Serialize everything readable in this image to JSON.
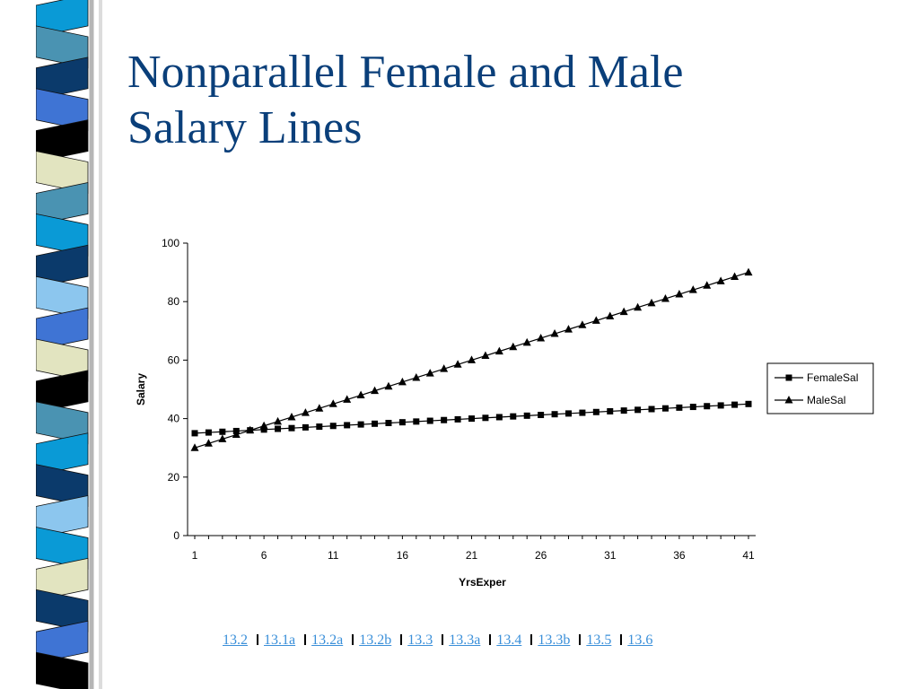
{
  "slide": {
    "title_lines": [
      "Nonparallel Female and Male",
      "Salary Lines"
    ]
  },
  "decoration": {
    "strip_colors": [
      "#0a9ad6",
      "#4a93b2",
      "#0b3a6b",
      "#3f74d4",
      "#000000",
      "#e2e4c0",
      "#4a93b2",
      "#0a9ad6",
      "#0b3a6b",
      "#8cc6ee",
      "#3f74d4",
      "#e2e4c0",
      "#000000",
      "#4a93b2",
      "#0a9ad6",
      "#0b3a6b",
      "#8cc6ee",
      "#0a9ad6",
      "#e2e4c0",
      "#0b3a6b",
      "#3f74d4",
      "#000000"
    ]
  },
  "chart_data": {
    "type": "line",
    "title": "",
    "xlabel": "YrsExper",
    "ylabel": "Salary",
    "ylim": [
      0,
      100
    ],
    "yticks": [
      0,
      20,
      40,
      60,
      80,
      100
    ],
    "xtick_labels": [
      "1",
      "6",
      "11",
      "16",
      "21",
      "26",
      "31",
      "36",
      "41"
    ],
    "x": [
      1,
      2,
      3,
      4,
      5,
      6,
      7,
      8,
      9,
      10,
      11,
      12,
      13,
      14,
      15,
      16,
      17,
      18,
      19,
      20,
      21,
      22,
      23,
      24,
      25,
      26,
      27,
      28,
      29,
      30,
      31,
      32,
      33,
      34,
      35,
      36,
      37,
      38,
      39,
      40,
      41
    ],
    "series": [
      {
        "name": "FemaleSal",
        "marker": "square",
        "values": [
          35,
          35.25,
          35.5,
          35.75,
          36,
          36.25,
          36.5,
          36.75,
          37,
          37.25,
          37.5,
          37.75,
          38,
          38.25,
          38.5,
          38.75,
          39,
          39.25,
          39.5,
          39.75,
          40,
          40.25,
          40.5,
          40.75,
          41,
          41.25,
          41.5,
          41.75,
          42,
          42.25,
          42.5,
          42.75,
          43,
          43.25,
          43.5,
          43.75,
          44,
          44.25,
          44.5,
          44.75,
          45
        ]
      },
      {
        "name": "MaleSal",
        "marker": "triangle",
        "values": [
          30,
          31.5,
          33,
          34.5,
          36,
          37.5,
          39,
          40.5,
          42,
          43.5,
          45,
          46.5,
          48,
          49.5,
          51,
          52.5,
          54,
          55.5,
          57,
          58.5,
          60,
          61.5,
          63,
          64.5,
          66,
          67.5,
          69,
          70.5,
          72,
          73.5,
          75,
          76.5,
          78,
          79.5,
          81,
          82.5,
          84,
          85.5,
          87,
          88.5,
          90
        ]
      }
    ],
    "grid": false,
    "legend_position": "right"
  },
  "nav_links": [
    "13.2",
    "13.1a",
    "13.2a",
    "13.2b",
    "13.3",
    "13.3a",
    "13.4",
    "13.3b",
    "13.5",
    "13.6"
  ]
}
